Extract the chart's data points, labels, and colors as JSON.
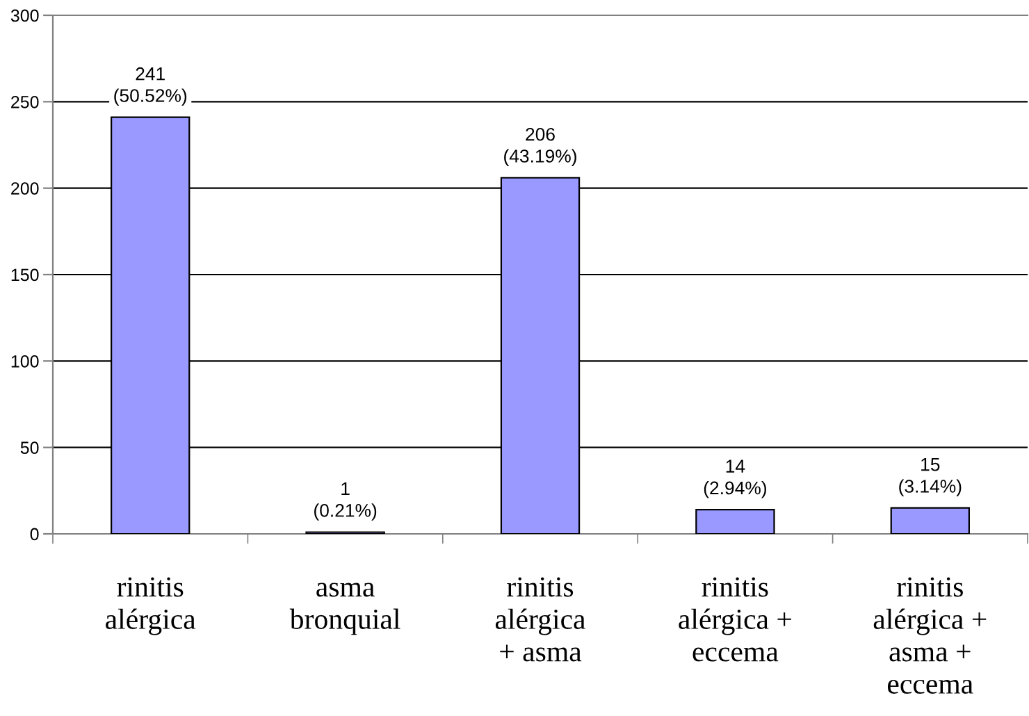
{
  "chart_data": {
    "type": "bar",
    "categories": [
      "rinitis\nalérgica",
      "asma\nbronquial",
      "rinitis\nalérgica\n+ asma",
      "rinitis\nalérgica +\neccema",
      "rinitis\nalérgica +\nasma +\neccema"
    ],
    "values": [
      241,
      1,
      206,
      14,
      15
    ],
    "value_labels": [
      "241\n(50.52%)",
      "1\n(0.21%)",
      "206\n(43.19%)",
      "14\n(2.94%)",
      "15\n(3.14%)"
    ],
    "color": "#9999ff",
    "ylim": [
      0,
      300
    ],
    "yticks": [
      0,
      50,
      100,
      150,
      200,
      250,
      300
    ],
    "grid": "y"
  }
}
